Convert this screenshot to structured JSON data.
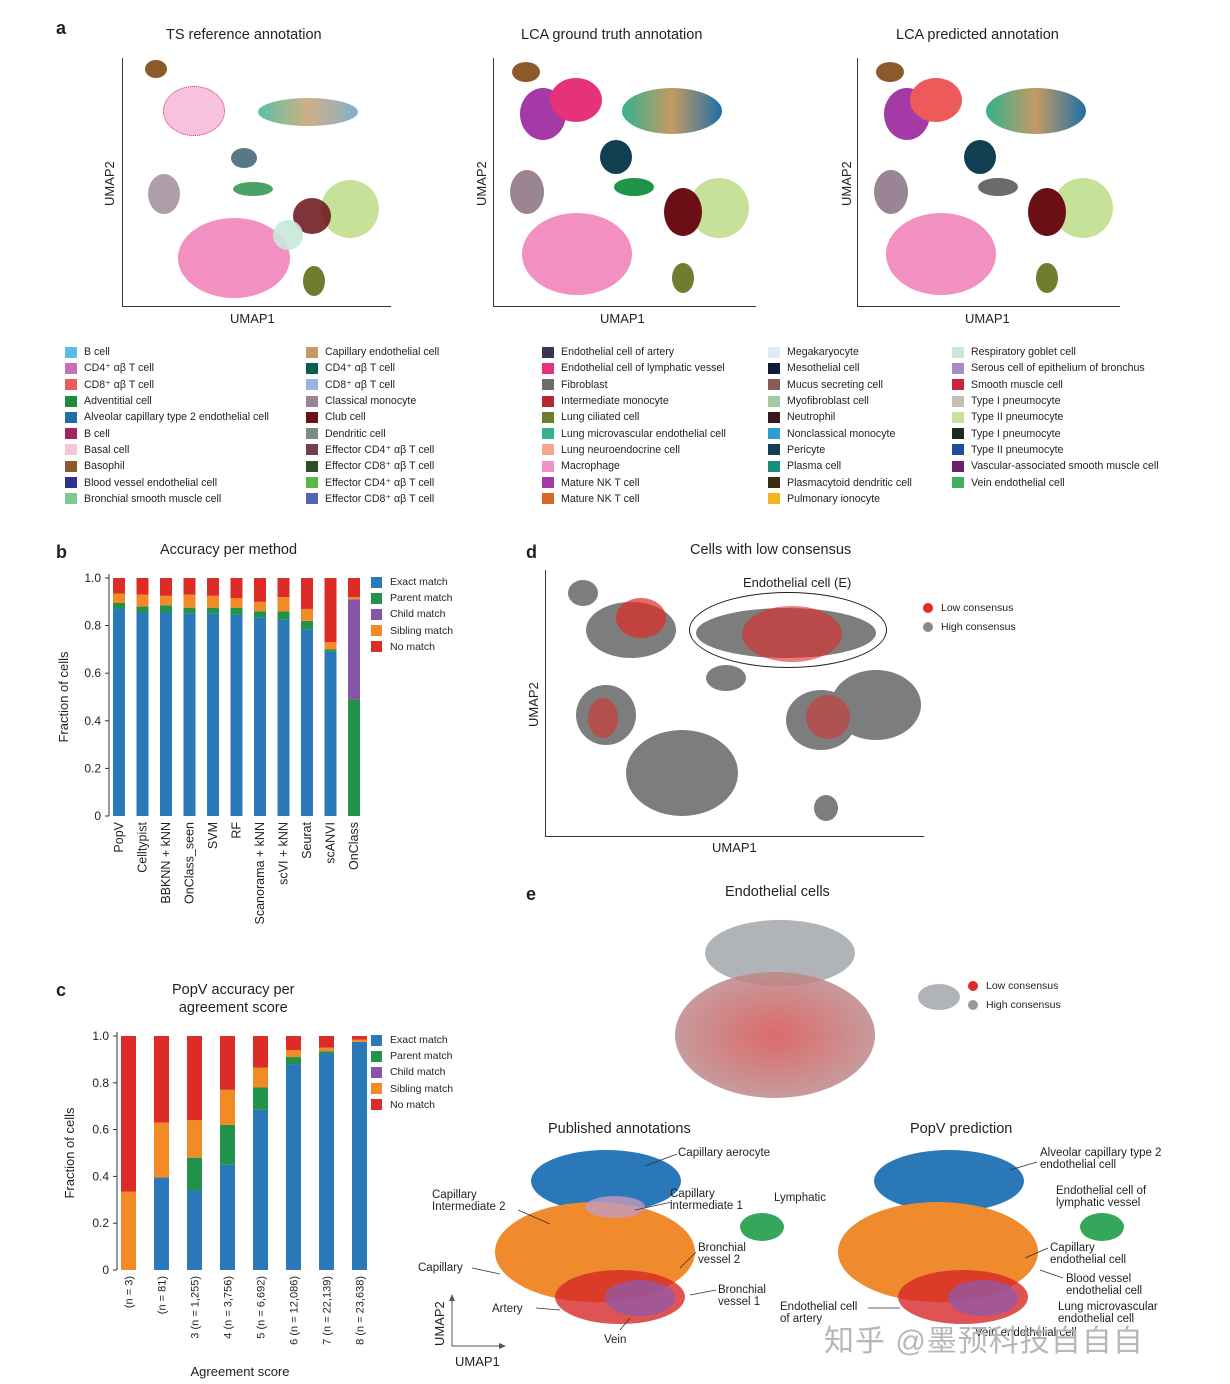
{
  "panel_a": {
    "letter": "a",
    "titles": [
      "TS reference annotation",
      "LCA ground truth annotation",
      "LCA predicted annotation"
    ],
    "xlabel": "UMAP1",
    "ylabel": "UMAP2",
    "legend_col1": [
      {
        "label": "B cell",
        "color": "#5bbde6"
      },
      {
        "label": "CD4⁺ αβ T cell",
        "color": "#c46fb6"
      },
      {
        "label": "CD8⁺ αβ T cell",
        "color": "#ec5a5a"
      },
      {
        "label": "Adventitial cell",
        "color": "#1f8b3f"
      },
      {
        "label": "Alveolar capillary type 2 endothelial cell",
        "color": "#1f6fa6"
      },
      {
        "label": "B cell",
        "color": "#a3245d"
      },
      {
        "label": "Basal cell",
        "color": "#f7c6d4"
      },
      {
        "label": "Basophil",
        "color": "#8b5a2b"
      },
      {
        "label": "Blood vessel endothelial cell",
        "color": "#2e3192"
      },
      {
        "label": "Bronchial smooth muscle cell",
        "color": "#7dca8e"
      }
    ],
    "legend_col2": [
      {
        "label": "Capillary endothelial cell",
        "color": "#c49a64"
      },
      {
        "label": "CD4⁺ αβ T cell",
        "color": "#0d5c4f"
      },
      {
        "label": "CD8⁺ αβ T cell",
        "color": "#9ab5e4"
      },
      {
        "label": "Classical monocyte",
        "color": "#9b8494"
      },
      {
        "label": "Club cell",
        "color": "#6a0f16"
      },
      {
        "label": "Dendritic cell",
        "color": "#7d8a86"
      },
      {
        "label": "Effector CD4⁺ αβ T cell",
        "color": "#74404f"
      },
      {
        "label": "Effector CD8⁺ αβ T cell",
        "color": "#2f4f25"
      },
      {
        "label": "Effector CD4⁺ αβ T cell",
        "color": "#55b845"
      },
      {
        "label": "Effector CD8⁺ αβ T cell",
        "color": "#5563b4"
      }
    ],
    "legend_col3": [
      {
        "label": "Endothelial cell of artery",
        "color": "#3d3451"
      },
      {
        "label": "Endothelial cell of lymphatic vessel",
        "color": "#e6327a"
      },
      {
        "label": "Fibroblast",
        "color": "#6b6b6b"
      },
      {
        "label": "Intermediate monocyte",
        "color": "#b5282f"
      },
      {
        "label": "Lung ciliated cell",
        "color": "#6f7d30"
      },
      {
        "label": "Lung microvascular endothelial cell",
        "color": "#35b18e"
      },
      {
        "label": "Lung neuroendocrine cell",
        "color": "#f3a58c"
      },
      {
        "label": "Macrophage",
        "color": "#f190c1"
      },
      {
        "label": "Mature NK T cell",
        "color": "#a43aa5"
      },
      {
        "label": "Mature NK T cell",
        "color": "#d9672a"
      }
    ],
    "legend_col4": [
      {
        "label": "Megakaryocyte",
        "color": "#ddebf8"
      },
      {
        "label": "Mesothelial cell",
        "color": "#121a3a"
      },
      {
        "label": "Mucus secreting cell",
        "color": "#8a5a56"
      },
      {
        "label": "Myofibroblast cell",
        "color": "#a3c9a3"
      },
      {
        "label": "Neutrophil",
        "color": "#3a1620"
      },
      {
        "label": "Nonclassical monocyte",
        "color": "#2a9fd0"
      },
      {
        "label": "Pericyte",
        "color": "#123f52"
      },
      {
        "label": "Plasma cell",
        "color": "#188e7a"
      },
      {
        "label": "Plasmacytoid dendritic cell",
        "color": "#3b2d12"
      },
      {
        "label": "Pulmonary ionocyte",
        "color": "#f4b520"
      }
    ],
    "legend_col5": [
      {
        "label": "Respiratory goblet cell",
        "color": "#c8e8dc"
      },
      {
        "label": "Serous cell of epithelium of bronchus",
        "color": "#a98bc4"
      },
      {
        "label": "Smooth muscle cell",
        "color": "#c8243f"
      },
      {
        "label": "Type I pneumocyte",
        "color": "#c6bdb3"
      },
      {
        "label": "Type II pneumocyte",
        "color": "#c6e29a"
      },
      {
        "label": "Type I pneumocyte",
        "color": "#1f2a1d"
      },
      {
        "label": "Type II pneumocyte",
        "color": "#1f4e9c"
      },
      {
        "label": "Vascular-associated smooth muscle cell",
        "color": "#6a2167"
      },
      {
        "label": "Vein endothelial cell",
        "color": "#3daf63"
      }
    ]
  },
  "panel_b": {
    "letter": "b",
    "chart_data": {
      "type": "bar",
      "title": "Accuracy per method",
      "ylabel": "Fraction of cells",
      "xlabel": "",
      "ylim": [
        0,
        1.0
      ],
      "yticks": [
        "0",
        "0.2",
        "0.4",
        "0.6",
        "0.8",
        "1.0"
      ],
      "categories": [
        "PopV",
        "Celltypist",
        "BBKNN + kNN",
        "OnClass_seen",
        "SVM",
        "RF",
        "Scanorama + kNN",
        "scVI + kNN",
        "Seurat",
        "scANVI",
        "OnClass"
      ],
      "series": [
        {
          "name": "Exact match",
          "color": "#2b78b8",
          "values": [
            0.87,
            0.855,
            0.855,
            0.85,
            0.85,
            0.845,
            0.835,
            0.825,
            0.785,
            0.69,
            0.0
          ]
        },
        {
          "name": "Parent match",
          "color": "#21924a",
          "values": [
            0.025,
            0.025,
            0.03,
            0.025,
            0.025,
            0.03,
            0.025,
            0.035,
            0.035,
            0.01,
            0.49
          ]
        },
        {
          "name": "Child match",
          "color": "#8755a8",
          "values": [
            0.0,
            0.0,
            0.0,
            0.0,
            0.0,
            0.0,
            0.0,
            0.0,
            0.0,
            0.0,
            0.42
          ]
        },
        {
          "name": "Sibling match",
          "color": "#f28b25",
          "values": [
            0.04,
            0.05,
            0.04,
            0.055,
            0.05,
            0.04,
            0.04,
            0.06,
            0.05,
            0.03,
            0.01
          ]
        },
        {
          "name": "No match",
          "color": "#dd2c27",
          "values": [
            0.065,
            0.07,
            0.075,
            0.07,
            0.075,
            0.085,
            0.1,
            0.08,
            0.13,
            0.27,
            0.08
          ]
        }
      ],
      "legend_position": "right"
    }
  },
  "panel_c": {
    "letter": "c",
    "chart_data": {
      "type": "bar",
      "title": "PopV accuracy per agreement score",
      "title_lines": [
        "PopV accuracy per",
        "agreement score"
      ],
      "ylabel": "Fraction of cells",
      "xlabel": "Agreement score",
      "ylim": [
        0,
        1.0
      ],
      "yticks": [
        "0",
        "0.2",
        "0.4",
        "0.6",
        "0.8",
        "1.0"
      ],
      "categories": [
        "(n = 3)",
        "(n = 81)",
        "3 (n = 1,255)",
        "4 (n = 3,756)",
        "5 (n = 6,692)",
        "6 (n = 12,086)",
        "7 (n = 22,139)",
        "8 (n = 23,638)"
      ],
      "series": [
        {
          "name": "Exact match",
          "color": "#2b78b8",
          "values": [
            0.0,
            0.395,
            0.34,
            0.45,
            0.685,
            0.88,
            0.925,
            0.975
          ]
        },
        {
          "name": "Parent match",
          "color": "#21924a",
          "values": [
            0.0,
            0.0,
            0.14,
            0.17,
            0.095,
            0.03,
            0.01,
            0.0
          ]
        },
        {
          "name": "Child match",
          "color": "#8755a8",
          "values": [
            0.0,
            0.0,
            0.0,
            0.0,
            0.0,
            0.0,
            0.0,
            0.0
          ]
        },
        {
          "name": "Sibling match",
          "color": "#f28b25",
          "values": [
            0.335,
            0.235,
            0.16,
            0.15,
            0.085,
            0.03,
            0.015,
            0.01
          ]
        },
        {
          "name": "No match",
          "color": "#dd2c27",
          "values": [
            0.665,
            0.37,
            0.36,
            0.23,
            0.135,
            0.06,
            0.05,
            0.015
          ]
        }
      ],
      "legend_position": "right"
    }
  },
  "panel_d": {
    "letter": "d",
    "title": "Cells with low consensus",
    "annotation": "Endothelial cell (E)",
    "xlabel": "UMAP1",
    "ylabel": "UMAP2",
    "legend": [
      {
        "label": "Low consensus",
        "color": "#e02a27"
      },
      {
        "label": "High consensus",
        "color": "#8a8a8a"
      }
    ]
  },
  "panel_e": {
    "letter": "e",
    "title": "Endothelial cells",
    "legend": [
      {
        "label": "Low consensus",
        "color": "#e02a27"
      },
      {
        "label": "High consensus",
        "color": "#9a9a9a"
      }
    ],
    "published_title": "Published annotations",
    "popv_title": "PopV prediction",
    "xlabel": "UMAP1",
    "ylabel": "UMAP2",
    "published_labels": [
      "Capillary aerocyte",
      "Capillary Intermediate 2",
      "Capillary intermediate 1",
      "Lymphatic",
      "Bronchial vessel 2",
      "Capillary",
      "Bronchial vessel 1",
      "Artery",
      "Vein"
    ],
    "popv_labels": [
      "Alveolar capillary type 2 endothelial cell",
      "Endothelial cell of lymphatic vessel",
      "Capillary endothelial cell",
      "Blood vessel endothelial cell",
      "Endothelial cell of artery",
      "Lung microvascular endothelial cell",
      "Vein endothelial cell"
    ]
  },
  "watermark": "知乎 @墨预科技自自自"
}
